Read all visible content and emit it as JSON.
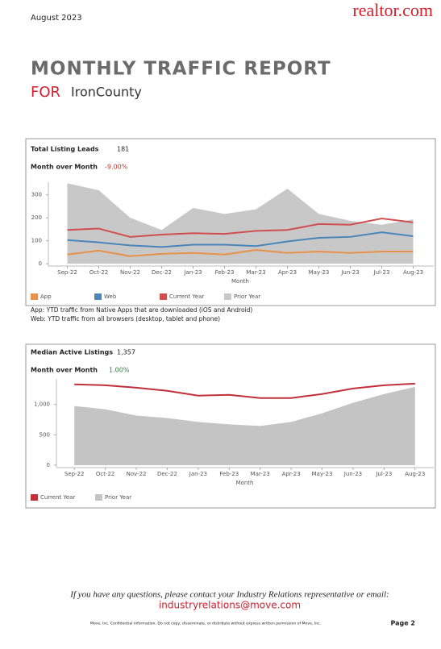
{
  "header": {
    "date": "August 2023",
    "logo": "realtor.com",
    "title": "MONTHLY TRAFFIC REPORT",
    "for_label": "FOR",
    "county": "IronCounty"
  },
  "chart_data": [
    {
      "type": "line",
      "heading": "Total Listing Leads",
      "heading_value": 181,
      "mom_label": "Month over Month",
      "mom_value": "-9.00%",
      "mom_color": "#c0392b",
      "xlabel": "Month",
      "categories": [
        "Sep-22",
        "Oct-22",
        "Nov-22",
        "Dec-22",
        "Jan-23",
        "Feb-23",
        "Mar-23",
        "Apr-23",
        "May-23",
        "Jun-23",
        "Jul-23",
        "Aug-23"
      ],
      "ylim": [
        -10,
        355
      ],
      "yticks": [
        0,
        100,
        200,
        300
      ],
      "series": [
        {
          "name": "App",
          "color": "#e8914a",
          "style": "line",
          "values": [
            40,
            57,
            33,
            43,
            47,
            40,
            60,
            47,
            53,
            47,
            53,
            53
          ]
        },
        {
          "name": "Web",
          "color": "#4a86b8",
          "style": "line",
          "values": [
            103,
            93,
            80,
            73,
            83,
            83,
            77,
            97,
            113,
            117,
            137,
            120
          ]
        },
        {
          "name": "Current Year",
          "color": "#d05050",
          "style": "line",
          "values": [
            147,
            153,
            117,
            127,
            133,
            130,
            143,
            147,
            173,
            170,
            197,
            180
          ]
        },
        {
          "name": "Prior Year",
          "color": "#c8c8c8",
          "style": "area",
          "values": [
            350,
            320,
            200,
            147,
            243,
            217,
            237,
            327,
            217,
            187,
            170,
            193
          ]
        }
      ]
    },
    {
      "type": "line",
      "heading": "Median Active Listings",
      "heading_value": "1,357",
      "mom_label": "Month over Month",
      "mom_value": "1.00%",
      "mom_color": "#2e7d32",
      "xlabel": "Month",
      "categories": [
        "Sep-22",
        "Oct-22",
        "Nov-22",
        "Dec-22",
        "Jan-23",
        "Feb-23",
        "Mar-23",
        "Apr-23",
        "May-23",
        "Jun-23",
        "Jul-23",
        "Aug-23"
      ],
      "ylim": [
        -40,
        1420
      ],
      "yticks": [
        0,
        500,
        {
          "value": 1000,
          "label": "1,000"
        }
      ],
      "series": [
        {
          "name": "Current Year",
          "color": "#c0303a",
          "style": "line",
          "values": [
            1330,
            1316,
            1276,
            1224,
            1145,
            1158,
            1105,
            1105,
            1171,
            1263,
            1316,
            1342
          ]
        },
        {
          "name": "Prior Year",
          "color": "#c4c4c4",
          "style": "area",
          "values": [
            974,
            921,
            816,
            776,
            711,
            671,
            645,
            711,
            855,
            1026,
            1171,
            1289
          ]
        }
      ]
    }
  ],
  "notes": [
    "App: YTD traffic from Native Apps that are downloaded (iOS and Android)",
    "Web: YTD traffic from all browsers (desktop, tablet and phone)"
  ],
  "footer": {
    "question": "If you have any questions, please contact your Industry Relations representative or email:",
    "email": "industryrelations@move.com",
    "legal": "Move, Inc. Confidential information. Do not copy, disseminate, or distribute without express written permission of Move, Inc.",
    "page": "Page 2"
  }
}
